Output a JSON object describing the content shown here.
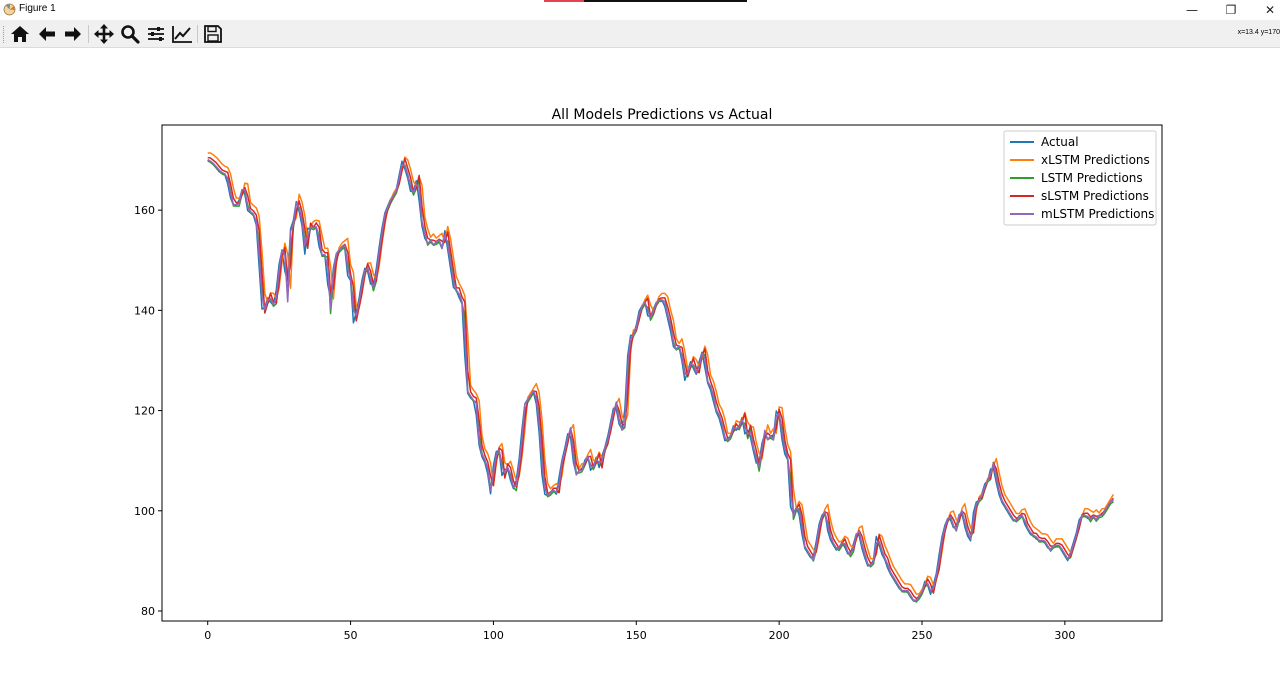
{
  "window": {
    "title": "Figure 1",
    "minimize_glyph": "—",
    "restore_glyph": "❐",
    "close_glyph": "✕"
  },
  "toolbar": {
    "items": [
      {
        "icon": "home-icon",
        "tooltip": "Reset original view"
      },
      {
        "icon": "back-arrow-icon",
        "tooltip": "Back to previous view"
      },
      {
        "icon": "forward-arrow-icon",
        "tooltip": "Forward to next view"
      },
      {
        "icon": "pan-icon",
        "tooltip": "Pan axes"
      },
      {
        "icon": "zoom-icon",
        "tooltip": "Zoom to rectangle"
      },
      {
        "icon": "subplots-icon",
        "tooltip": "Configure subplots"
      },
      {
        "icon": "edit-axis-icon",
        "tooltip": "Edit axis"
      },
      {
        "icon": "save-icon",
        "tooltip": "Save the figure"
      }
    ],
    "coordinates": "x=13.4 y=170"
  },
  "chart_data": {
    "type": "line",
    "title": "All Models Predictions vs Actual",
    "xlabel": "",
    "ylabel": "",
    "xlim": [
      -16,
      334
    ],
    "ylim": [
      78,
      177
    ],
    "xticks": [
      0,
      50,
      100,
      150,
      200,
      250,
      300
    ],
    "yticks": [
      80,
      100,
      120,
      140,
      160
    ],
    "grid": false,
    "legend_position": "top-right",
    "actual_anchors": [
      [
        0,
        170
      ],
      [
        2,
        169
      ],
      [
        4,
        167.5
      ],
      [
        6,
        167
      ],
      [
        8,
        161
      ],
      [
        10,
        161
      ],
      [
        11,
        164
      ],
      [
        12,
        164
      ],
      [
        13,
        160
      ],
      [
        15,
        159
      ],
      [
        16,
        157
      ],
      [
        18,
        139
      ],
      [
        20,
        143
      ],
      [
        21,
        141
      ],
      [
        22,
        141
      ],
      [
        24,
        152
      ],
      [
        25,
        152
      ],
      [
        26,
        141
      ],
      [
        27,
        156
      ],
      [
        28,
        157
      ],
      [
        29,
        162
      ],
      [
        30,
        160
      ],
      [
        31,
        157
      ],
      [
        32,
        151
      ],
      [
        33,
        157
      ],
      [
        34,
        156
      ],
      [
        35,
        157
      ],
      [
        36,
        156
      ],
      [
        37,
        151
      ],
      [
        38,
        151
      ],
      [
        39,
        151
      ],
      [
        40,
        139
      ],
      [
        41,
        147
      ],
      [
        42,
        151
      ],
      [
        43,
        152
      ],
      [
        45,
        153
      ],
      [
        46,
        147
      ],
      [
        47,
        146
      ],
      [
        48,
        137
      ],
      [
        50,
        143
      ],
      [
        51,
        147
      ],
      [
        52,
        149
      ],
      [
        53,
        147
      ],
      [
        54,
        144
      ],
      [
        55,
        146
      ],
      [
        56,
        151
      ],
      [
        58,
        159
      ],
      [
        60,
        162
      ],
      [
        62,
        164
      ],
      [
        64,
        170
      ],
      [
        66,
        166
      ],
      [
        67,
        163
      ],
      [
        68,
        164
      ],
      [
        69,
        167
      ],
      [
        70,
        158
      ],
      [
        72,
        153
      ],
      [
        73,
        154
      ],
      [
        74,
        153
      ],
      [
        76,
        154
      ],
      [
        77,
        152
      ],
      [
        78,
        156
      ],
      [
        80,
        148
      ],
      [
        81,
        144
      ],
      [
        82,
        144
      ],
      [
        83,
        142
      ],
      [
        84,
        141
      ],
      [
        85,
        124
      ],
      [
        86,
        123
      ],
      [
        87,
        122
      ],
      [
        88,
        122
      ],
      [
        89,
        114
      ],
      [
        90,
        111
      ],
      [
        91,
        110
      ],
      [
        92,
        108
      ],
      [
        93,
        103
      ],
      [
        94,
        109
      ],
      [
        95,
        112
      ],
      [
        96,
        112
      ],
      [
        97,
        106
      ],
      [
        98,
        109
      ],
      [
        99,
        108
      ],
      [
        100,
        105
      ],
      [
        101,
        104
      ],
      [
        102,
        108
      ],
      [
        103,
        113
      ],
      [
        104,
        121
      ],
      [
        105,
        122
      ],
      [
        106,
        123
      ],
      [
        107,
        124
      ],
      [
        108,
        122
      ],
      [
        109,
        116
      ],
      [
        110,
        107
      ],
      [
        111,
        103
      ],
      [
        112,
        103
      ],
      [
        113,
        104
      ],
      [
        114,
        104
      ],
      [
        115,
        103
      ],
      [
        116,
        109
      ],
      [
        117,
        111
      ],
      [
        118,
        114
      ],
      [
        119,
        117
      ],
      [
        120,
        111
      ],
      [
        121,
        107
      ],
      [
        122,
        108
      ],
      [
        123,
        108
      ],
      [
        124,
        110
      ],
      [
        125,
        111
      ],
      [
        126,
        108
      ],
      [
        127,
        109
      ],
      [
        128,
        111
      ],
      [
        129,
        108
      ],
      [
        130,
        112
      ],
      [
        131,
        113
      ],
      [
        132,
        116
      ],
      [
        133,
        119
      ],
      [
        134,
        122
      ],
      [
        135,
        118
      ],
      [
        136,
        116
      ],
      [
        137,
        117
      ],
      [
        138,
        130
      ],
      [
        139,
        135
      ],
      [
        140,
        135
      ],
      [
        141,
        137
      ],
      [
        142,
        140
      ],
      [
        143,
        141
      ],
      [
        144,
        142
      ],
      [
        145,
        138
      ],
      [
        146,
        139
      ],
      [
        147,
        141
      ],
      [
        148,
        142
      ],
      [
        149,
        142
      ],
      [
        150,
        142
      ],
      [
        151,
        139
      ],
      [
        152,
        137
      ],
      [
        153,
        133
      ],
      [
        154,
        132
      ],
      [
        155,
        133
      ],
      [
        156,
        130
      ],
      [
        157,
        126
      ],
      [
        158,
        128
      ],
      [
        159,
        130
      ],
      [
        160,
        128
      ],
      [
        161,
        127
      ],
      [
        162,
        131
      ],
      [
        163,
        132
      ],
      [
        164,
        126
      ],
      [
        165,
        125
      ],
      [
        166,
        123
      ],
      [
        167,
        120
      ],
      [
        168,
        119
      ],
      [
        169,
        117
      ],
      [
        170,
        114
      ],
      [
        171,
        114
      ],
      [
        172,
        115
      ],
      [
        173,
        117
      ],
      [
        174,
        116
      ],
      [
        175,
        117
      ],
      [
        176,
        119
      ],
      [
        177,
        114
      ],
      [
        178,
        117
      ],
      [
        179,
        113
      ],
      [
        180,
        111
      ],
      [
        181,
        108
      ],
      [
        182,
        112
      ],
      [
        183,
        116
      ],
      [
        184,
        114
      ],
      [
        185,
        115
      ],
      [
        186,
        114
      ],
      [
        187,
        120
      ],
      [
        188,
        119
      ],
      [
        189,
        114
      ],
      [
        190,
        111
      ],
      [
        191,
        110
      ],
      [
        192,
        98
      ],
      [
        193,
        100
      ],
      [
        194,
        101
      ],
      [
        195,
        98
      ],
      [
        196,
        93
      ],
      [
        197,
        92
      ],
      [
        198,
        91
      ],
      [
        199,
        90
      ],
      [
        200,
        93
      ],
      [
        201,
        97
      ],
      [
        202,
        99
      ],
      [
        203,
        100
      ],
      [
        204,
        96
      ],
      [
        205,
        94
      ],
      [
        206,
        93
      ],
      [
        207,
        92
      ],
      [
        208,
        93
      ],
      [
        209,
        94
      ],
      [
        210,
        92
      ],
      [
        211,
        91
      ],
      [
        212,
        92
      ],
      [
        213,
        95
      ],
      [
        214,
        96
      ],
      [
        215,
        93
      ],
      [
        216,
        91
      ],
      [
        217,
        89
      ],
      [
        218,
        89
      ],
      [
        219,
        90
      ],
      [
        220,
        95
      ],
      [
        221,
        93
      ],
      [
        222,
        91
      ],
      [
        223,
        90
      ],
      [
        224,
        88
      ],
      [
        225,
        87
      ],
      [
        226,
        86
      ],
      [
        227,
        85
      ],
      [
        228,
        84
      ],
      [
        229,
        84
      ],
      [
        230,
        84
      ],
      [
        231,
        83
      ],
      [
        232,
        82
      ],
      [
        233,
        82
      ],
      [
        234,
        83
      ],
      [
        235,
        84
      ],
      [
        236,
        86
      ],
      [
        237,
        85
      ],
      [
        238,
        83
      ],
      [
        239,
        86
      ],
      [
        240,
        88
      ],
      [
        241,
        93
      ],
      [
        242,
        96
      ],
      [
        243,
        98
      ],
      [
        244,
        99
      ],
      [
        245,
        97
      ],
      [
        246,
        96
      ],
      [
        247,
        99
      ],
      [
        248,
        100
      ],
      [
        249,
        97
      ],
      [
        250,
        95
      ],
      [
        251,
        94
      ],
      [
        252,
        100
      ],
      [
        253,
        102
      ],
      [
        254,
        102
      ],
      [
        255,
        104
      ],
      [
        256,
        106
      ],
      [
        257,
        106
      ],
      [
        258,
        110
      ],
      [
        259,
        107
      ],
      [
        260,
        104
      ],
      [
        261,
        102
      ],
      [
        262,
        101
      ],
      [
        263,
        100
      ],
      [
        264,
        99
      ],
      [
        265,
        98
      ],
      [
        266,
        98
      ],
      [
        267,
        99
      ],
      [
        268,
        99
      ],
      [
        269,
        97
      ],
      [
        270,
        96
      ],
      [
        271,
        95
      ],
      [
        272,
        95
      ],
      [
        273,
        94
      ],
      [
        274,
        94
      ],
      [
        275,
        94
      ],
      [
        276,
        93
      ],
      [
        277,
        92
      ],
      [
        278,
        93
      ],
      [
        279,
        93
      ],
      [
        280,
        93
      ],
      [
        281,
        92
      ],
      [
        282,
        91
      ],
      [
        283,
        90
      ],
      [
        284,
        92
      ],
      [
        285,
        94
      ],
      [
        286,
        96
      ],
      [
        287,
        99
      ],
      [
        288,
        99
      ],
      [
        289,
        99
      ],
      [
        290,
        98
      ],
      [
        291,
        99
      ],
      [
        292,
        98
      ],
      [
        293,
        99
      ],
      [
        294,
        99
      ],
      [
        295,
        100
      ],
      [
        296,
        101
      ],
      [
        297,
        102
      ],
      [
        298,
        102
      ]
    ],
    "series": [
      {
        "name": "Actual",
        "color": "#1f77b4",
        "lag": 0,
        "offset": 0
      },
      {
        "name": "xLSTM Predictions",
        "color": "#ff7f0e",
        "lag": 1.2,
        "offset": 1.4
      },
      {
        "name": "LSTM Predictions",
        "color": "#2ca02c",
        "lag": 0.5,
        "offset": -0.2
      },
      {
        "name": "sLSTM Predictions",
        "color": "#d62728",
        "lag": 0.8,
        "offset": 0.5
      },
      {
        "name": "mLSTM Predictions",
        "color": "#9467bd",
        "lag": 0.3,
        "offset": 0.1
      }
    ],
    "x_range": [
      0,
      317
    ]
  }
}
